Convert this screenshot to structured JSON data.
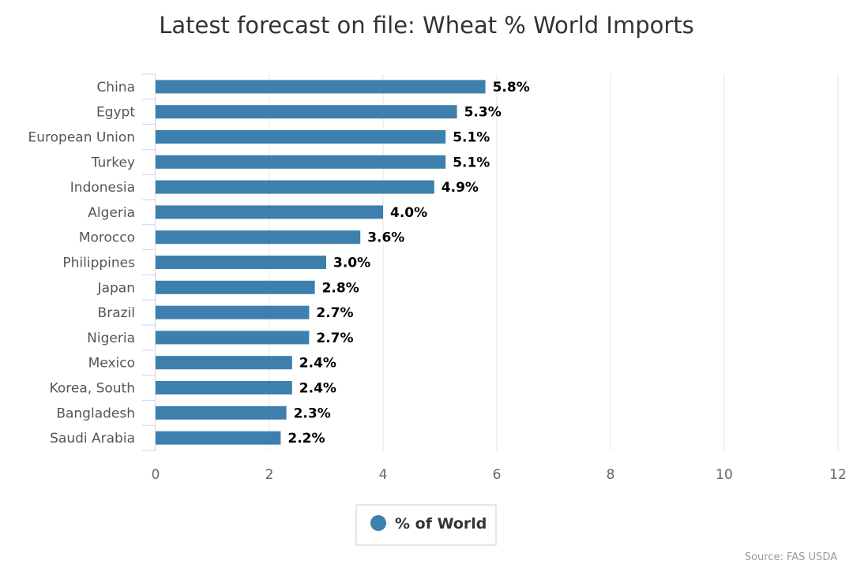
{
  "chart_data": {
    "type": "bar",
    "orientation": "horizontal",
    "title": "Latest forecast on file: Wheat % World Imports",
    "categories": [
      "China",
      "Egypt",
      "European Union",
      "Turkey",
      "Indonesia",
      "Algeria",
      "Morocco",
      "Philippines",
      "Japan",
      "Brazil",
      "Nigeria",
      "Mexico",
      "Korea, South",
      "Bangladesh",
      "Saudi Arabia"
    ],
    "series": [
      {
        "name": "% of World",
        "color": "#3d7fad",
        "values": [
          5.8,
          5.3,
          5.1,
          5.1,
          4.9,
          4.0,
          3.6,
          3.0,
          2.8,
          2.7,
          2.7,
          2.4,
          2.4,
          2.3,
          2.2
        ],
        "data_labels": [
          "5.8%",
          "5.3%",
          "5.1%",
          "5.1%",
          "4.9%",
          "4.0%",
          "3.6%",
          "3.0%",
          "2.8%",
          "2.7%",
          "2.7%",
          "2.4%",
          "2.4%",
          "2.3%",
          "2.2%"
        ]
      }
    ],
    "xlim": [
      0,
      12
    ],
    "xticks": [
      0,
      2,
      4,
      6,
      8,
      10,
      12
    ],
    "xtick_labels": [
      "0",
      "2",
      "4",
      "6",
      "8",
      "10",
      "12"
    ],
    "xlabel": "",
    "ylabel": "",
    "grid": "vertical",
    "legend_position": "bottom-center",
    "credit": "Source: FAS USDA"
  }
}
